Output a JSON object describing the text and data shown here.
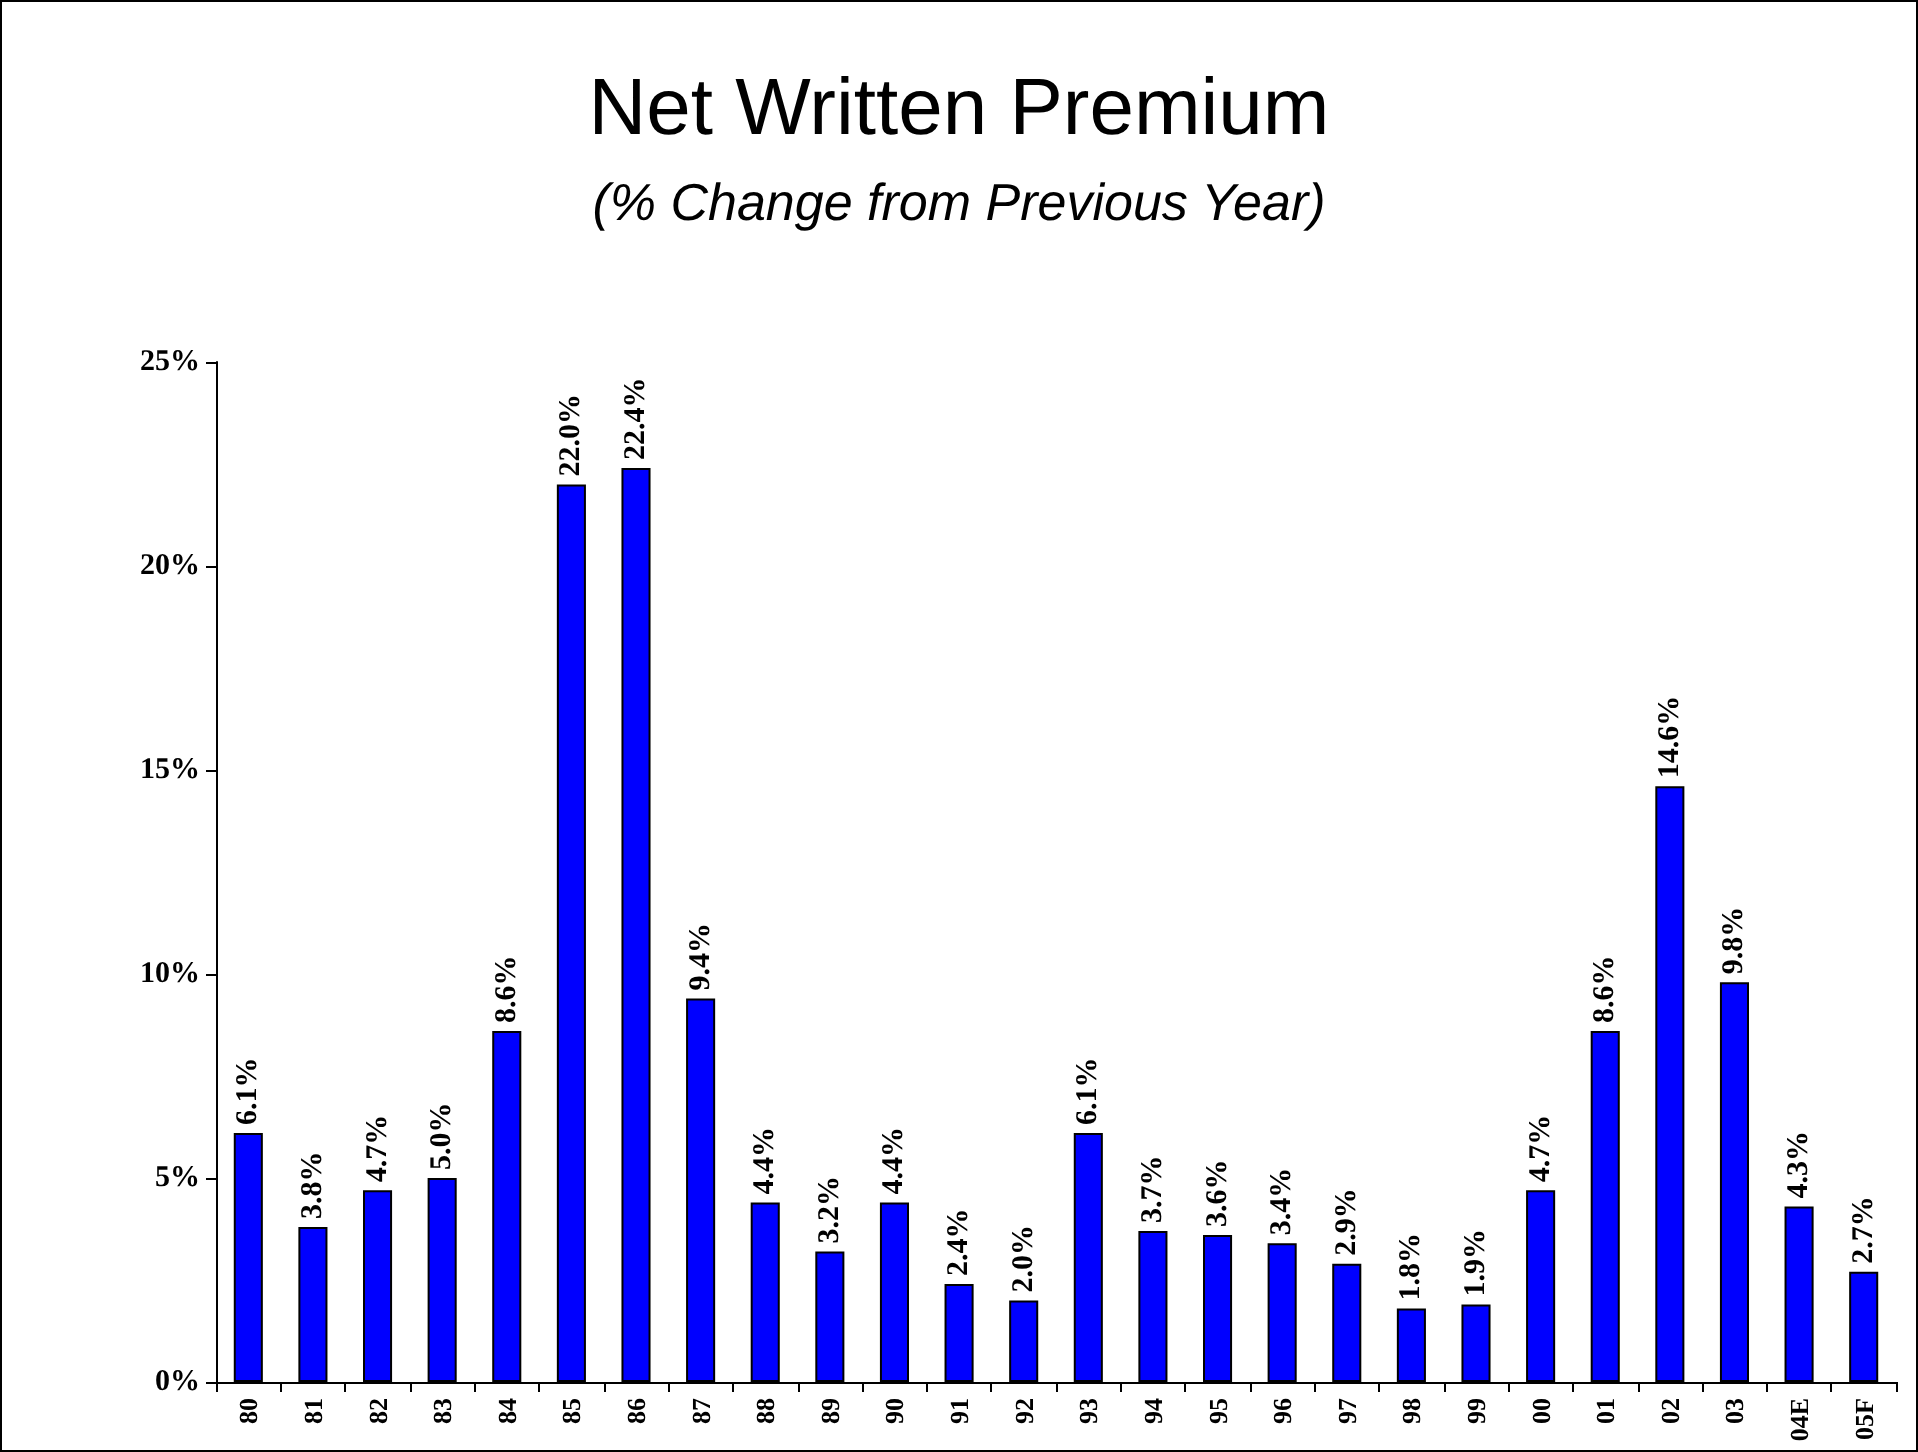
{
  "chart_data": {
    "type": "bar",
    "title": "Net Written Premium",
    "subtitle": "(% Change from Previous Year)",
    "categories": [
      "80",
      "81",
      "82",
      "83",
      "84",
      "85",
      "86",
      "87",
      "88",
      "89",
      "90",
      "91",
      "92",
      "93",
      "94",
      "95",
      "96",
      "97",
      "98",
      "99",
      "00",
      "01",
      "02",
      "03",
      "04E",
      "05F"
    ],
    "values": [
      6.1,
      3.8,
      4.7,
      5.0,
      8.6,
      22.0,
      22.4,
      9.4,
      4.4,
      3.2,
      4.4,
      2.4,
      2.0,
      6.1,
      3.7,
      3.6,
      3.4,
      2.9,
      1.8,
      1.9,
      4.7,
      8.6,
      14.6,
      9.8,
      4.3,
      2.7
    ],
    "value_labels": [
      "6.1%",
      "3.8%",
      "4.7%",
      "5.0%",
      "8.6%",
      "22.0%",
      "22.4%",
      "9.4%",
      "4.4%",
      "3.2%",
      "4.4%",
      "2.4%",
      "2.0%",
      "6.1%",
      "3.7%",
      "3.6%",
      "3.4%",
      "2.9%",
      "1.8%",
      "1.9%",
      "4.7%",
      "8.6%",
      "14.6%",
      "9.8%",
      "4.3%",
      "2.7%"
    ],
    "color": "#0000ff",
    "ylim": [
      0,
      25
    ],
    "yticks": [
      {
        "value": 0,
        "label": "0%"
      },
      {
        "value": 5,
        "label": "5%"
      },
      {
        "value": 10,
        "label": "10%"
      },
      {
        "value": 15,
        "label": "15%"
      },
      {
        "value": 20,
        "label": "20%"
      },
      {
        "value": 25,
        "label": "25%"
      }
    ],
    "grid": false
  }
}
